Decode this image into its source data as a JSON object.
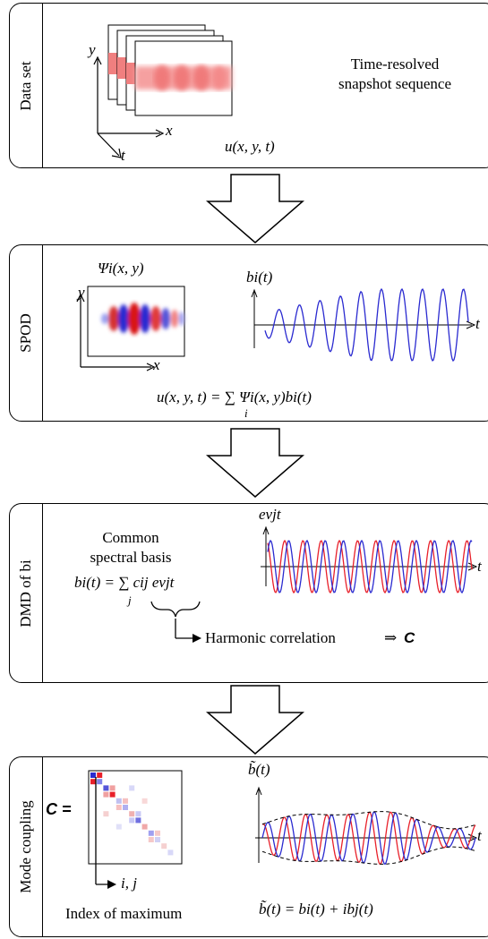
{
  "panels": {
    "dataset": {
      "label": "Data set",
      "description_line1": "Time-resolved",
      "description_line2": "snapshot sequence",
      "formula": "u(x, y, t)",
      "axis_x": "x",
      "axis_y": "y",
      "axis_t": "t"
    },
    "spod": {
      "label": "SPOD",
      "mode_title": "Ψi(x, y)",
      "coef_title": "bi(t)",
      "formula": "u(x, y, t) = ∑ Ψi(x, y)bi(t)",
      "sum_index": "i",
      "axis_x": "x",
      "axis_y": "y",
      "axis_t": "t"
    },
    "dmd": {
      "label": "DMD of bi",
      "basis_line1": "Common",
      "basis_line2": "spectral basis",
      "formula": "bi(t) = ∑ cij eνjt",
      "sum_index": "j",
      "exp_title": "eνjt",
      "harmonic_label": "Harmonic correlation",
      "implies": "⇒",
      "matrix_symbol": "C",
      "axis_t": "t"
    },
    "coupling": {
      "label": "Mode coupling",
      "matrix_eq": "C =",
      "index_axis": "i, j",
      "index_caption": "Index of maximum",
      "btilde_title": "b̃(t)",
      "formula": "b̃(t) = bi(t) + ibj(t)",
      "axis_t": "t"
    }
  },
  "colors": {
    "red": "#e8202a",
    "blue": "#2a2ad0",
    "snapshot": "#f07f7f"
  }
}
